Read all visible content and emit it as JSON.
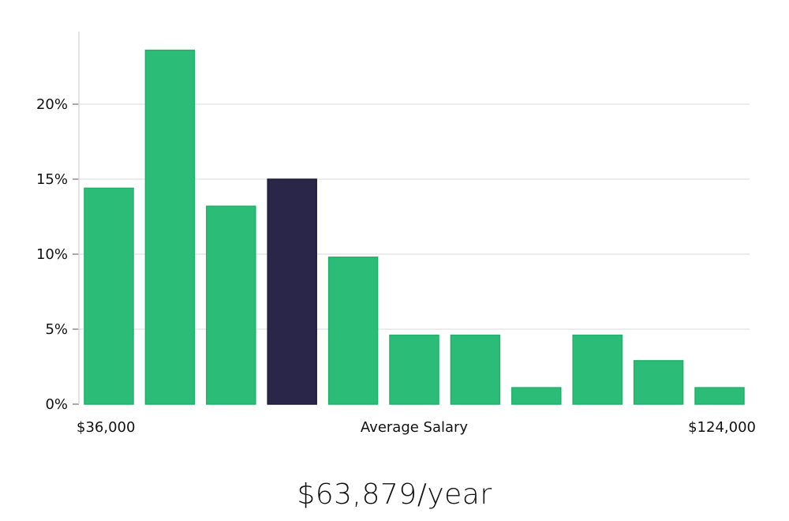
{
  "chart_data": {
    "type": "bar",
    "x_start_label": "$36,000",
    "x_end_label": "$124,000",
    "xlabel": "Average Salary",
    "ylabel": "",
    "ylim": [
      0,
      25
    ],
    "yticks": [
      {
        "value": 0,
        "label": "0%"
      },
      {
        "value": 5,
        "label": "5%"
      },
      {
        "value": 10,
        "label": "10%"
      },
      {
        "value": 15,
        "label": "15%"
      },
      {
        "value": 20,
        "label": "20%"
      }
    ],
    "grid": true,
    "highlight_index": 3,
    "values": [
      14.4,
      23.6,
      13.2,
      15.0,
      9.8,
      4.6,
      4.6,
      1.1,
      4.6,
      2.9,
      1.1
    ],
    "colors": {
      "bar": "#2bbd77",
      "bar_stroke": "#22b06c",
      "highlight": "#29264a",
      "grid": "#e6e6ea",
      "axis": "#d9d9de"
    }
  },
  "summary": {
    "salary_text": "$63,879/year"
  }
}
